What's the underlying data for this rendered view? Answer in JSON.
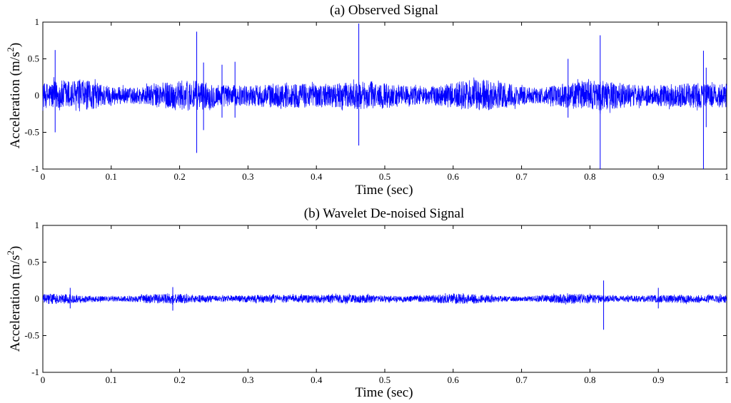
{
  "chart_data": [
    {
      "type": "line",
      "title": "(a)  Observed Signal",
      "xlabel": "Time (sec)",
      "ylabel": "Acceleration (m/s",
      "ylabel_sup": "2",
      "ylabel_close": ")",
      "xlim": [
        0,
        1
      ],
      "ylim": [
        -1,
        1
      ],
      "xticks": [
        "0",
        "0.1",
        "0.2",
        "0.3",
        "0.4",
        "0.5",
        "0.6",
        "0.7",
        "0.8",
        "0.9",
        "1"
      ],
      "yticks": [
        "-1",
        "-0.5",
        "0",
        "0.5",
        "1"
      ],
      "grid": false,
      "color": "#0000ff",
      "noise_amplitude": 0.22,
      "spikes": [
        {
          "x": 0.018,
          "min": -0.5,
          "max": 0.62
        },
        {
          "x": 0.225,
          "min": -0.78,
          "max": 0.87
        },
        {
          "x": 0.235,
          "min": -0.47,
          "max": 0.45
        },
        {
          "x": 0.262,
          "min": -0.3,
          "max": 0.42
        },
        {
          "x": 0.281,
          "min": -0.3,
          "max": 0.46
        },
        {
          "x": 0.462,
          "min": -0.68,
          "max": 0.98
        },
        {
          "x": 0.768,
          "min": -0.3,
          "max": 0.5
        },
        {
          "x": 0.815,
          "min": -1.0,
          "max": 0.82
        },
        {
          "x": 0.966,
          "min": -1.0,
          "max": 0.61
        },
        {
          "x": 0.97,
          "min": -0.43,
          "max": 0.38
        }
      ]
    },
    {
      "type": "line",
      "title": "(b)  Wavelet De-noised Signal",
      "xlabel": "Time (sec)",
      "ylabel": "Acceleration (m/s",
      "ylabel_sup": "2",
      "ylabel_close": ")",
      "xlim": [
        0,
        1
      ],
      "ylim": [
        -1,
        1
      ],
      "xticks": [
        "0",
        "0.1",
        "0.2",
        "0.3",
        "0.4",
        "0.5",
        "0.6",
        "0.7",
        "0.8",
        "0.9",
        "1"
      ],
      "yticks": [
        "-1",
        "-0.5",
        "0",
        "0.5",
        "1"
      ],
      "grid": false,
      "color": "#0000ff",
      "noise_amplitude": 0.07,
      "spikes": [
        {
          "x": 0.04,
          "min": -0.13,
          "max": 0.15
        },
        {
          "x": 0.19,
          "min": -0.16,
          "max": 0.16
        },
        {
          "x": 0.82,
          "min": -0.42,
          "max": 0.25
        },
        {
          "x": 0.9,
          "min": -0.13,
          "max": 0.15
        }
      ]
    }
  ]
}
